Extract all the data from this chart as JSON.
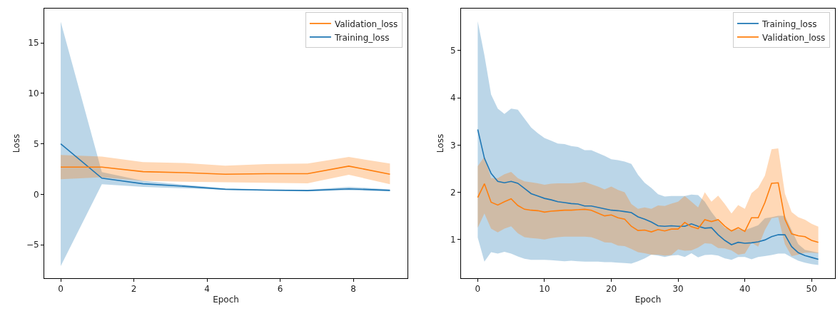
{
  "chart_data": [
    {
      "type": "line",
      "xlabel": "Epoch",
      "ylabel": "Loss",
      "x": [
        0,
        1.125,
        2.25,
        3.375,
        4.5,
        5.625,
        6.75,
        7.875,
        9
      ],
      "xlim": [
        -0.45,
        9.48
      ],
      "xticks": [
        0,
        2,
        4,
        6,
        8
      ],
      "ylim": [
        -8.3,
        18.4
      ],
      "yticks": [
        {
          "value": -5,
          "label": "−5"
        },
        0,
        5,
        10,
        15
      ],
      "legend": "top right",
      "grid": false,
      "series": [
        {
          "name": "Training_loss",
          "color": "#1f77b4",
          "values": [
            5.0,
            1.6,
            1.05,
            0.8,
            0.5,
            0.42,
            0.38,
            0.55,
            0.4
          ],
          "lower": [
            -7.1,
            1.0,
            0.75,
            0.6,
            0.45,
            0.35,
            0.3,
            0.4,
            0.3
          ],
          "upper": [
            17.1,
            2.2,
            1.35,
            0.95,
            0.6,
            0.5,
            0.45,
            0.75,
            0.5
          ]
        },
        {
          "name": "Validation_loss",
          "color": "#ff7f0e",
          "values": [
            2.7,
            2.7,
            2.25,
            2.15,
            2.0,
            2.05,
            2.05,
            2.8,
            2.0
          ],
          "lower": [
            1.5,
            1.7,
            1.35,
            1.25,
            1.2,
            1.15,
            1.1,
            1.95,
            1.0
          ],
          "upper": [
            3.9,
            3.75,
            3.2,
            3.1,
            2.85,
            3.0,
            3.05,
            3.7,
            3.05
          ]
        }
      ]
    },
    {
      "type": "line",
      "xlabel": "Epoch",
      "ylabel": "Loss",
      "x": [
        0,
        1,
        2,
        3,
        4,
        5,
        6,
        7,
        8,
        9,
        10,
        11,
        12,
        13,
        14,
        15,
        16,
        17,
        18,
        19,
        20,
        21,
        22,
        23,
        24,
        25,
        26,
        27,
        28,
        29,
        30,
        31,
        32,
        33,
        34,
        35,
        36,
        37,
        38,
        39,
        40,
        41,
        42,
        43,
        44,
        45,
        46,
        47,
        48,
        49,
        50,
        51
      ],
      "xlim": [
        -2.5,
        53.5
      ],
      "xticks": [
        0,
        10,
        20,
        30,
        40,
        50
      ],
      "ylim": [
        0.18,
        5.89
      ],
      "yticks": [
        1,
        2,
        3,
        4,
        5
      ],
      "legend": "top right",
      "grid": false,
      "series": [
        {
          "name": "Training_loss",
          "color": "#1f77b4",
          "values": [
            3.33,
            2.72,
            2.4,
            2.23,
            2.2,
            2.23,
            2.19,
            2.08,
            1.97,
            1.92,
            1.87,
            1.84,
            1.8,
            1.78,
            1.76,
            1.75,
            1.71,
            1.71,
            1.68,
            1.65,
            1.62,
            1.61,
            1.59,
            1.57,
            1.48,
            1.43,
            1.37,
            1.29,
            1.28,
            1.29,
            1.28,
            1.28,
            1.33,
            1.28,
            1.24,
            1.25,
            1.1,
            0.98,
            0.89,
            0.94,
            0.92,
            0.93,
            0.95,
            0.99,
            1.06,
            1.1,
            1.1,
            0.85,
            0.72,
            0.66,
            0.62,
            0.58
          ],
          "lower": [
            1.04,
            0.53,
            0.73,
            0.7,
            0.74,
            0.7,
            0.64,
            0.59,
            0.57,
            0.57,
            0.57,
            0.56,
            0.55,
            0.54,
            0.55,
            0.54,
            0.53,
            0.53,
            0.53,
            0.52,
            0.52,
            0.51,
            0.5,
            0.49,
            0.54,
            0.6,
            0.68,
            0.66,
            0.63,
            0.66,
            0.67,
            0.63,
            0.71,
            0.62,
            0.67,
            0.68,
            0.66,
            0.6,
            0.57,
            0.63,
            0.63,
            0.58,
            0.63,
            0.65,
            0.67,
            0.7,
            0.7,
            0.62,
            0.55,
            0.51,
            0.48,
            0.46
          ],
          "upper": [
            5.62,
            4.9,
            4.07,
            3.77,
            3.66,
            3.77,
            3.75,
            3.56,
            3.37,
            3.25,
            3.15,
            3.09,
            3.03,
            3.02,
            2.98,
            2.96,
            2.89,
            2.89,
            2.83,
            2.77,
            2.7,
            2.68,
            2.65,
            2.6,
            2.37,
            2.2,
            2.09,
            1.96,
            1.91,
            1.92,
            1.92,
            1.92,
            1.95,
            1.94,
            1.8,
            1.58,
            1.4,
            1.25,
            1.2,
            1.22,
            1.2,
            1.25,
            1.3,
            1.45,
            1.47,
            1.5,
            1.5,
            1.2,
            0.9,
            0.78,
            0.75,
            0.72
          ]
        },
        {
          "name": "Validation_loss",
          "color": "#ff7f0e",
          "values": [
            1.89,
            2.18,
            1.79,
            1.73,
            1.8,
            1.86,
            1.72,
            1.64,
            1.62,
            1.61,
            1.58,
            1.6,
            1.61,
            1.62,
            1.62,
            1.63,
            1.64,
            1.62,
            1.56,
            1.5,
            1.52,
            1.46,
            1.43,
            1.28,
            1.19,
            1.2,
            1.16,
            1.21,
            1.18,
            1.22,
            1.22,
            1.36,
            1.27,
            1.23,
            1.42,
            1.38,
            1.42,
            1.28,
            1.18,
            1.25,
            1.17,
            1.46,
            1.46,
            1.78,
            2.19,
            2.2,
            1.43,
            1.12,
            1.08,
            1.06,
            0.98,
            0.94
          ],
          "lower": [
            1.25,
            1.55,
            1.23,
            1.15,
            1.23,
            1.28,
            1.13,
            1.05,
            1.03,
            1.02,
            1.0,
            1.03,
            1.05,
            1.06,
            1.06,
            1.06,
            1.06,
            1.05,
            1.0,
            0.94,
            0.93,
            0.87,
            0.86,
            0.8,
            0.73,
            0.71,
            0.68,
            0.68,
            0.66,
            0.67,
            0.79,
            0.76,
            0.77,
            0.83,
            0.92,
            0.91,
            0.82,
            0.81,
            0.77,
            0.68,
            0.7,
            0.93,
            0.85,
            1.2,
            1.45,
            1.47,
            0.9,
            0.65,
            0.68,
            0.72,
            0.72,
            0.71
          ],
          "upper": [
            2.55,
            2.75,
            2.3,
            2.3,
            2.38,
            2.43,
            2.3,
            2.23,
            2.21,
            2.19,
            2.16,
            2.18,
            2.19,
            2.19,
            2.19,
            2.2,
            2.22,
            2.17,
            2.12,
            2.06,
            2.12,
            2.05,
            2.0,
            1.75,
            1.65,
            1.68,
            1.65,
            1.72,
            1.71,
            1.76,
            1.8,
            1.92,
            1.8,
            1.68,
            2.0,
            1.8,
            1.93,
            1.75,
            1.55,
            1.73,
            1.65,
            1.98,
            2.1,
            2.35,
            2.91,
            2.93,
            1.97,
            1.58,
            1.47,
            1.42,
            1.33,
            1.27
          ]
        }
      ]
    }
  ]
}
